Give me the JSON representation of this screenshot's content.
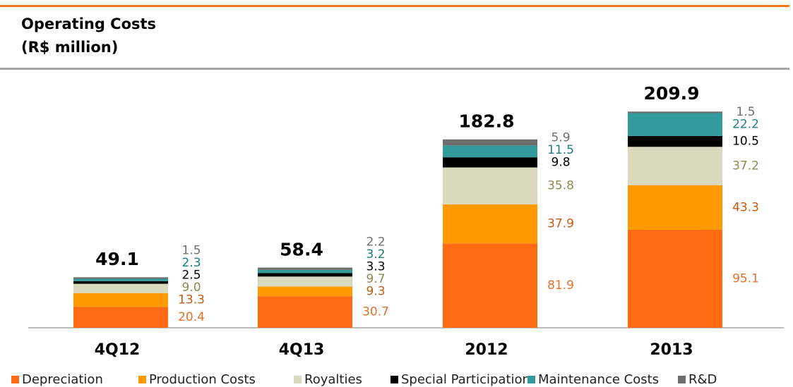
{
  "chart_data": {
    "type": "stacked_bar",
    "title": "Operating Costs",
    "subtitle": "(R$ million)",
    "categories": [
      "4Q12",
      "4Q13",
      "2012",
      "2013"
    ],
    "totals": [
      49.1,
      58.4,
      182.8,
      209.9
    ],
    "series": [
      {
        "name": "Depreciation",
        "color": "#FF6A13",
        "label_color": "#E8702A",
        "values": [
          20.4,
          30.7,
          81.9,
          95.1
        ]
      },
      {
        "name": "Production Costs",
        "color": "#FF9B00",
        "label_color": "#C55A11",
        "values": [
          13.3,
          9.3,
          37.9,
          43.3
        ]
      },
      {
        "name": "Royalties",
        "color": "#D9D9BD",
        "label_color": "#8C8C50",
        "values": [
          9.0,
          9.7,
          35.8,
          37.2
        ],
        "value_labels": [
          "9.0",
          "9.7",
          "35.8",
          "37.2"
        ]
      },
      {
        "name": "Special Participation",
        "color": "#000000",
        "label_color": "#000000",
        "values": [
          2.5,
          3.3,
          9.8,
          10.5
        ]
      },
      {
        "name": "Maintenance Costs",
        "color": "#339B9B",
        "label_color": "#1F7F7F",
        "values": [
          2.3,
          3.2,
          11.5,
          22.2
        ]
      },
      {
        "name": "R&D",
        "color": "#6D6D6D",
        "label_color": "#707070",
        "values": [
          1.5,
          2.2,
          5.9,
          1.5
        ]
      }
    ]
  }
}
